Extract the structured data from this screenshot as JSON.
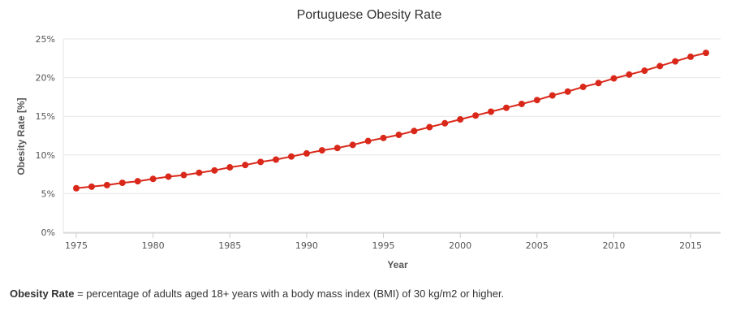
{
  "chart_data": {
    "type": "line",
    "title": "Portuguese Obesity Rate",
    "xlabel": "Year",
    "ylabel": "Obesity Rate [%]",
    "x_ticks": [
      "1975",
      "1980",
      "1985",
      "1990",
      "1995",
      "2000",
      "2005",
      "2010",
      "2015"
    ],
    "y_ticks": [
      "0%",
      "5%",
      "10%",
      "15%",
      "20%",
      "25%"
    ],
    "ylim": [
      0,
      25
    ],
    "xlim": [
      1975,
      2016
    ],
    "grid": "horizontal",
    "series_color": "#d9281a",
    "series": [
      {
        "x": [
          1975,
          1976,
          1977,
          1978,
          1979,
          1980,
          1981,
          1982,
          1983,
          1984,
          1985,
          1986,
          1987,
          1988,
          1989,
          1990,
          1991,
          1992,
          1993,
          1994,
          1995,
          1996,
          1997,
          1998,
          1999,
          2000,
          2001,
          2002,
          2003,
          2004,
          2005,
          2006,
          2007,
          2008,
          2009,
          2010,
          2011,
          2012,
          2013,
          2014,
          2015,
          2016
        ],
        "values": [
          5.7,
          5.9,
          6.1,
          6.4,
          6.6,
          6.9,
          7.2,
          7.4,
          7.7,
          8.0,
          8.4,
          8.7,
          9.1,
          9.4,
          9.8,
          10.2,
          10.6,
          10.9,
          11.3,
          11.8,
          12.2,
          12.6,
          13.1,
          13.6,
          14.1,
          14.6,
          15.1,
          15.6,
          16.1,
          16.6,
          17.1,
          17.7,
          18.2,
          18.8,
          19.3,
          19.9,
          20.4,
          20.9,
          21.5,
          22.1,
          22.7,
          23.2
        ]
      }
    ]
  },
  "footnote": {
    "term": "Obesity Rate",
    "text": " = percentage of adults aged 18+ years with a body mass index (BMI) of 30 kg/m2 or higher."
  }
}
